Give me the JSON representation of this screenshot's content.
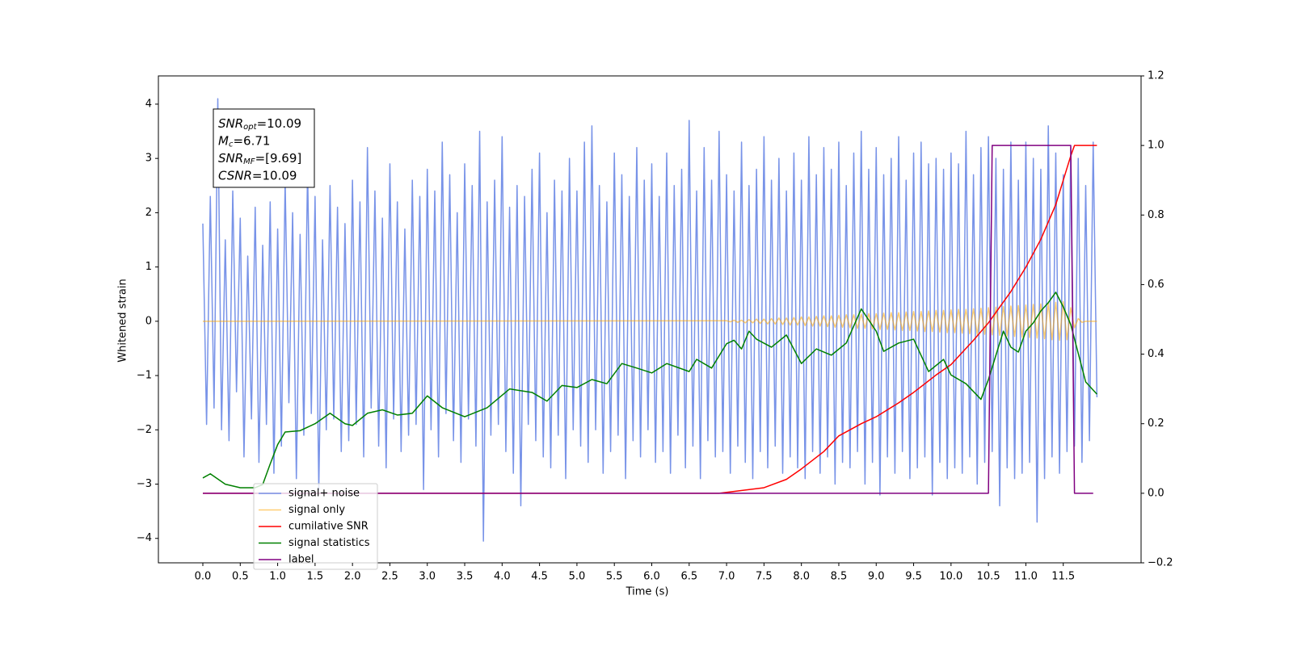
{
  "chart_data": {
    "type": "line",
    "xlabel": "Time (s)",
    "ylabel": "Whitened strain",
    "xlim": [
      -0.594,
      12.54
    ],
    "ylim": [
      -4.45,
      4.52
    ],
    "y2lim": [
      -0.2,
      1.2
    ],
    "xticks": [
      {
        "value": 0,
        "label": "0.0"
      },
      0.5,
      {
        "value": 1,
        "label": "1.0"
      },
      1.5,
      {
        "value": 2,
        "label": "2.0"
      },
      2.5,
      {
        "value": 3,
        "label": "3.0"
      },
      3.5,
      {
        "value": 4,
        "label": "4.0"
      },
      4.5,
      {
        "value": 5,
        "label": "5.0"
      },
      5.5,
      {
        "value": 6,
        "label": "6.0"
      },
      6.5,
      {
        "value": 7,
        "label": "7.0"
      },
      7.5,
      {
        "value": 8,
        "label": "8.0"
      },
      8.5,
      {
        "value": 9,
        "label": "9.0"
      },
      9.5,
      {
        "value": 10,
        "label": "10.0"
      },
      10.5,
      {
        "value": 11,
        "label": "11.0"
      },
      11.5
    ],
    "yticks": [
      {
        "value": -4,
        "label": "−4"
      },
      {
        "value": -3,
        "label": "−3"
      },
      {
        "value": -2,
        "label": "−2"
      },
      {
        "value": -1,
        "label": "−1"
      },
      0,
      1,
      2,
      3,
      4
    ],
    "y2ticks": [
      {
        "value": -0.2,
        "label": "−0.2"
      },
      {
        "value": 0,
        "label": "0.0"
      },
      0.2,
      0.4,
      0.6,
      0.8,
      {
        "value": 1,
        "label": "1.0"
      },
      1.2
    ],
    "annotation": [
      {
        "base": "SNR",
        "sub": "opt",
        "text": "=10.09"
      },
      {
        "base": "M",
        "sub": "c",
        "text": "=6.71"
      },
      {
        "base": "SNR",
        "sub": "MF",
        "text": "=[9.69]"
      },
      {
        "base": "CSNR",
        "text": "=10.09"
      }
    ],
    "legend": "lower left",
    "series": [
      {
        "name": "signal+ noise",
        "color": "#7893e8",
        "alpha": 1,
        "x": [
          0,
          0.05,
          0.1,
          0.15,
          0.2,
          0.25,
          0.3,
          0.35,
          0.4,
          0.45,
          0.5,
          0.55,
          0.6,
          0.65,
          0.7,
          0.75,
          0.8,
          0.85,
          0.9,
          0.95,
          1,
          1.05,
          1.1,
          1.15,
          1.2,
          1.25,
          1.3,
          1.35,
          1.4,
          1.45,
          1.5,
          1.55,
          1.6,
          1.65,
          1.7,
          1.75,
          1.8,
          1.85,
          1.9,
          1.95,
          2,
          2.05,
          2.1,
          2.15,
          2.2,
          2.25,
          2.3,
          2.35,
          2.4,
          2.45,
          2.5,
          2.55,
          2.6,
          2.65,
          2.7,
          2.75,
          2.8,
          2.85,
          2.9,
          2.95,
          3,
          3.05,
          3.1,
          3.15,
          3.2,
          3.25,
          3.3,
          3.35,
          3.4,
          3.45,
          3.5,
          3.55,
          3.6,
          3.65,
          3.7,
          3.75,
          3.8,
          3.85,
          3.9,
          3.95,
          4,
          4.05,
          4.1,
          4.15,
          4.2,
          4.25,
          4.3,
          4.35,
          4.4,
          4.45,
          4.5,
          4.55,
          4.6,
          4.65,
          4.7,
          4.75,
          4.8,
          4.85,
          4.9,
          4.95,
          5,
          5.05,
          5.1,
          5.15,
          5.2,
          5.25,
          5.3,
          5.35,
          5.4,
          5.45,
          5.5,
          5.55,
          5.6,
          5.65,
          5.7,
          5.75,
          5.8,
          5.85,
          5.9,
          5.95,
          6,
          6.05,
          6.1,
          6.15,
          6.2,
          6.25,
          6.3,
          6.35,
          6.4,
          6.45,
          6.5,
          6.55,
          6.6,
          6.65,
          6.7,
          6.75,
          6.8,
          6.85,
          6.9,
          6.95,
          7,
          7.05,
          7.1,
          7.15,
          7.2,
          7.25,
          7.3,
          7.35,
          7.4,
          7.45,
          7.5,
          7.55,
          7.6,
          7.65,
          7.7,
          7.75,
          7.8,
          7.85,
          7.9,
          7.95,
          8,
          8.05,
          8.1,
          8.15,
          8.2,
          8.25,
          8.3,
          8.35,
          8.4,
          8.45,
          8.5,
          8.55,
          8.6,
          8.65,
          8.7,
          8.75,
          8.8,
          8.85,
          8.9,
          8.95,
          9,
          9.05,
          9.1,
          9.15,
          9.2,
          9.25,
          9.3,
          9.35,
          9.4,
          9.45,
          9.5,
          9.55,
          9.6,
          9.65,
          9.7,
          9.75,
          9.8,
          9.85,
          9.9,
          9.95,
          10,
          10.05,
          10.1,
          10.15,
          10.2,
          10.25,
          10.3,
          10.35,
          10.4,
          10.45,
          10.5,
          10.55,
          10.6,
          10.65,
          10.7,
          10.75,
          10.8,
          10.85,
          10.9,
          10.95,
          11,
          11.05,
          11.1,
          11.15,
          11.2,
          11.25,
          11.3,
          11.35,
          11.4,
          11.45,
          11.5,
          11.55,
          11.6,
          11.65,
          11.7,
          11.75,
          11.8,
          11.85,
          11.9,
          11.95
        ],
        "values": [
          1.8,
          -1.9,
          2.3,
          -1.6,
          4.1,
          -2.0,
          1.5,
          -2.2,
          2.4,
          -1.3,
          1.9,
          -2.5,
          1.2,
          -1.8,
          2.1,
          -2.6,
          1.4,
          -1.9,
          2.2,
          -2.8,
          1.7,
          -2.3,
          2.6,
          -1.5,
          2.0,
          -2.9,
          1.6,
          -2.1,
          2.8,
          -1.7,
          2.3,
          -3.1,
          1.5,
          -2.0,
          2.5,
          -1.8,
          2.1,
          -2.4,
          1.8,
          -2.2,
          2.6,
          -1.9,
          2.2,
          -2.5,
          3.2,
          -1.6,
          2.4,
          -2.3,
          1.9,
          -2.7,
          2.9,
          -1.8,
          2.2,
          -2.4,
          1.7,
          -2.1,
          2.6,
          -1.9,
          2.3,
          -3.1,
          2.8,
          -2.0,
          2.4,
          -2.5,
          3.3,
          -1.7,
          2.7,
          -2.2,
          2.0,
          -2.6,
          2.9,
          -1.8,
          2.5,
          -2.3,
          3.5,
          -4.05,
          2.2,
          -2.1,
          2.6,
          -1.9,
          3.4,
          -2.4,
          2.1,
          -2.8,
          2.5,
          -3.4,
          2.3,
          -1.9,
          2.8,
          -2.2,
          3.1,
          -2.5,
          2.0,
          -2.7,
          2.6,
          -2.1,
          2.4,
          -2.9,
          3.0,
          -2.0,
          2.4,
          -2.3,
          3.3,
          -2.6,
          3.6,
          -2.0,
          2.5,
          -2.8,
          2.2,
          -2.4,
          3.1,
          -2.1,
          2.7,
          -2.9,
          2.3,
          -2.2,
          3.2,
          -2.5,
          2.6,
          -2.0,
          2.9,
          -2.6,
          2.3,
          -2.4,
          3.1,
          -2.8,
          2.5,
          -2.1,
          2.8,
          -2.7,
          3.7,
          -2.3,
          2.4,
          -2.9,
          3.2,
          -2.2,
          2.6,
          -2.5,
          3.5,
          -2.4,
          2.7,
          -2.8,
          2.4,
          -2.3,
          3.3,
          -2.6,
          2.5,
          -2.9,
          2.8,
          -2.4,
          3.4,
          -2.7,
          2.6,
          -2.3,
          3.0,
          -2.8,
          2.4,
          -2.5,
          3.1,
          -2.7,
          2.6,
          -2.9,
          3.4,
          -2.4,
          2.7,
          -2.8,
          3.2,
          -2.5,
          2.8,
          -3.0,
          3.3,
          -2.6,
          2.5,
          -2.7,
          3.1,
          -2.4,
          3.5,
          -3.0,
          2.8,
          -2.6,
          3.2,
          -3.2,
          2.7,
          -2.5,
          3.0,
          -2.8,
          3.4,
          -2.4,
          2.6,
          -2.9,
          3.1,
          -2.7,
          3.3,
          -2.5,
          2.9,
          -3.2,
          3.0,
          -2.6,
          2.8,
          -2.9,
          3.1,
          -2.7,
          2.9,
          -2.8,
          3.5,
          -2.5,
          2.7,
          -3.0,
          3.2,
          -2.6,
          3.4,
          -2.4,
          3.0,
          -3.4,
          2.8,
          -2.7,
          3.3,
          -2.9,
          2.6,
          -2.8,
          3.3,
          -2.6,
          3.0,
          -3.7,
          2.8,
          -2.9,
          3.6,
          -2.5,
          3.1,
          -2.8,
          2.7,
          -2.4,
          3.2,
          -2.3,
          3.0,
          -2.6,
          2.5,
          -2.2,
          3.3,
          -1.4
        ]
      },
      {
        "name": "signal only",
        "color": "#ffa500",
        "alpha": 0.55,
        "x": [
          0,
          7,
          7.05,
          7.1,
          7.15,
          7.2,
          7.25,
          7.3,
          7.35,
          7.4,
          7.45,
          7.5,
          7.55,
          7.6,
          7.65,
          7.7,
          7.75,
          7.8,
          7.85,
          7.9,
          7.95,
          8,
          8.05,
          8.1,
          8.15,
          8.2,
          8.25,
          8.3,
          8.35,
          8.4,
          8.45,
          8.5,
          8.55,
          8.6,
          8.65,
          8.7,
          8.75,
          8.8,
          8.85,
          8.9,
          8.95,
          9,
          9.05,
          9.1,
          9.15,
          9.2,
          9.25,
          9.3,
          9.35,
          9.4,
          9.45,
          9.5,
          9.55,
          9.6,
          9.65,
          9.7,
          9.75,
          9.8,
          9.85,
          9.9,
          9.95,
          10,
          10.05,
          10.1,
          10.15,
          10.2,
          10.25,
          10.3,
          10.35,
          10.4,
          10.45,
          10.5,
          10.55,
          10.6,
          10.65,
          10.7,
          10.75,
          10.8,
          10.85,
          10.9,
          10.95,
          11,
          11.05,
          11.1,
          11.15,
          11.2,
          11.25,
          11.3,
          11.35,
          11.4,
          11.45,
          11.5,
          11.55,
          11.6,
          11.65,
          11.7,
          11.75,
          11.8,
          11.85,
          11.9,
          11.95
        ],
        "values": [
          0,
          0.01,
          -0.01,
          0.02,
          -0.02,
          0.02,
          -0.03,
          0.03,
          -0.03,
          0.04,
          -0.04,
          0.04,
          -0.05,
          0.05,
          -0.05,
          0.06,
          -0.06,
          0.06,
          -0.07,
          0.07,
          -0.07,
          0.08,
          -0.08,
          0.08,
          -0.09,
          0.09,
          -0.09,
          0.1,
          -0.1,
          0.1,
          -0.11,
          0.11,
          -0.11,
          0.12,
          -0.12,
          0.12,
          -0.13,
          0.13,
          -0.13,
          0.14,
          -0.14,
          0.14,
          -0.15,
          0.15,
          -0.15,
          0.16,
          -0.16,
          0.16,
          -0.17,
          0.17,
          -0.17,
          0.18,
          -0.18,
          0.18,
          -0.19,
          0.19,
          -0.19,
          0.2,
          -0.2,
          0.2,
          -0.21,
          0.21,
          -0.21,
          0.22,
          -0.22,
          0.22,
          -0.23,
          0.23,
          -0.24,
          0.24,
          -0.24,
          0.25,
          -0.25,
          0.26,
          -0.26,
          0.27,
          -0.27,
          0.28,
          -0.28,
          0.29,
          -0.29,
          0.3,
          -0.3,
          0.31,
          -0.31,
          0.32,
          -0.32,
          0.33,
          -0.34,
          0.35,
          -0.35,
          0.36,
          -0.34,
          0.25,
          -0.12,
          0.05,
          -0.02,
          0,
          0,
          0,
          0
        ]
      },
      {
        "name": "cumilative SNR",
        "color": "#ff0000",
        "axis": "y2",
        "x": [
          0,
          6.9,
          7.5,
          7.8,
          8,
          8.3,
          8.5,
          8.8,
          9,
          9.3,
          9.5,
          9.8,
          10,
          10.3,
          10.5,
          10.8,
          11,
          11.2,
          11.4,
          11.5,
          11.6,
          11.65,
          11.95
        ],
        "values": [
          0,
          0,
          0.016,
          0.04,
          0.07,
          0.12,
          0.165,
          0.2,
          0.22,
          0.26,
          0.29,
          0.34,
          0.37,
          0.44,
          0.49,
          0.58,
          0.65,
          0.73,
          0.83,
          0.9,
          0.97,
          1.0,
          1.0
        ]
      },
      {
        "name": "signal statistics",
        "color": "#008000",
        "axis": "y2",
        "x": [
          0,
          0.1,
          0.3,
          0.5,
          0.7,
          0.8,
          0.9,
          1,
          1.1,
          1.3,
          1.5,
          1.7,
          1.9,
          2,
          2.2,
          2.4,
          2.6,
          2.8,
          3,
          3.2,
          3.5,
          3.8,
          4.1,
          4.4,
          4.6,
          4.8,
          5,
          5.2,
          5.4,
          5.6,
          5.8,
          6,
          6.2,
          6.5,
          6.6,
          6.8,
          7,
          7.1,
          7.2,
          7.3,
          7.4,
          7.6,
          7.8,
          8,
          8.2,
          8.4,
          8.6,
          8.8,
          9,
          9.1,
          9.3,
          9.5,
          9.7,
          9.9,
          10,
          10.2,
          10.4,
          10.5,
          10.6,
          10.7,
          10.8,
          10.9,
          11,
          11.1,
          11.2,
          11.3,
          11.4,
          11.5,
          11.6,
          11.8,
          11.95
        ],
        "values": [
          0.044,
          0.056,
          0.026,
          0.016,
          0.016,
          0.025,
          0.084,
          0.14,
          0.176,
          0.18,
          0.2,
          0.23,
          0.2,
          0.195,
          0.23,
          0.24,
          0.225,
          0.23,
          0.28,
          0.246,
          0.22,
          0.246,
          0.3,
          0.29,
          0.265,
          0.31,
          0.304,
          0.327,
          0.315,
          0.373,
          0.36,
          0.346,
          0.373,
          0.35,
          0.385,
          0.36,
          0.43,
          0.44,
          0.415,
          0.466,
          0.443,
          0.42,
          0.455,
          0.373,
          0.415,
          0.397,
          0.432,
          0.53,
          0.466,
          0.408,
          0.432,
          0.443,
          0.35,
          0.385,
          0.34,
          0.315,
          0.27,
          0.327,
          0.397,
          0.466,
          0.42,
          0.406,
          0.466,
          0.49,
          0.524,
          0.548,
          0.578,
          0.536,
          0.485,
          0.32,
          0.285
        ]
      },
      {
        "name": "label",
        "color": "#800080",
        "axis": "y2",
        "x": [
          0,
          10.5,
          10.55,
          11.6,
          11.65,
          11.9
        ],
        "values": [
          0,
          0,
          1,
          1,
          0,
          0
        ]
      }
    ]
  }
}
